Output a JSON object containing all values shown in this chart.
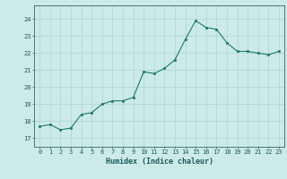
{
  "x": [
    0,
    1,
    2,
    3,
    4,
    5,
    6,
    7,
    8,
    9,
    10,
    11,
    12,
    13,
    14,
    15,
    16,
    17,
    18,
    19,
    20,
    21,
    22,
    23
  ],
  "y": [
    17.7,
    17.8,
    17.5,
    17.6,
    18.4,
    18.5,
    19.0,
    19.2,
    19.2,
    19.4,
    20.9,
    20.8,
    21.1,
    21.6,
    22.8,
    23.9,
    23.5,
    23.4,
    22.6,
    22.1,
    22.1,
    22.0,
    21.9,
    22.1
  ],
  "xlabel": "Humidex (Indice chaleur)",
  "ylabel": "",
  "xlim": [
    -0.5,
    23.5
  ],
  "ylim": [
    16.5,
    24.8
  ],
  "yticks": [
    17,
    18,
    19,
    20,
    21,
    22,
    23,
    24
  ],
  "xticks": [
    0,
    1,
    2,
    3,
    4,
    5,
    6,
    7,
    8,
    9,
    10,
    11,
    12,
    13,
    14,
    15,
    16,
    17,
    18,
    19,
    20,
    21,
    22,
    23
  ],
  "line_color": "#1a7a6e",
  "marker_color": "#1a7a6e",
  "bg_color": "#cceae8",
  "grid_color": "#aad4d0",
  "axes_color": "#336666",
  "tick_label_color": "#1a5a5a",
  "xlabel_color": "#1a5a5a"
}
